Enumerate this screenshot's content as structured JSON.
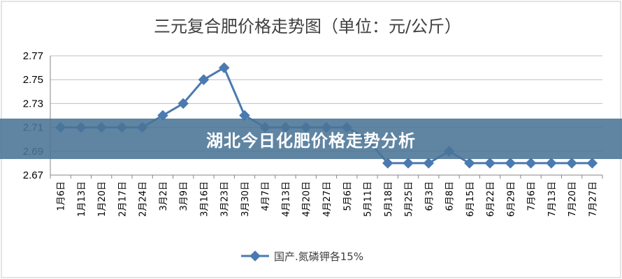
{
  "banner": {
    "text": "湖北今日化肥价格走势分析"
  },
  "chart_data": {
    "type": "line",
    "title": "三元复合肥价格走势图（单位：元/公斤）",
    "categories": [
      "1月6日",
      "1月13日",
      "1月20日",
      "2月17日",
      "2月24日",
      "3月2日",
      "3月9日",
      "3月16日",
      "3月23日",
      "3月30日",
      "4月7日",
      "4月13日",
      "4月20日",
      "4月27日",
      "5月6日",
      "5月11日",
      "5月18日",
      "5月25日",
      "6月3日",
      "6月8日",
      "6月15日",
      "6月22日",
      "6月29日",
      "7月6日",
      "7月13日",
      "7月20日",
      "7月27日"
    ],
    "series": [
      {
        "name": "国产.氮磷钾各15%",
        "color": "#4a7ab0",
        "values": [
          2.71,
          2.71,
          2.71,
          2.71,
          2.71,
          2.72,
          2.73,
          2.75,
          2.76,
          2.72,
          2.71,
          2.71,
          2.71,
          2.71,
          2.71,
          2.7,
          2.68,
          2.68,
          2.68,
          2.69,
          2.68,
          2.68,
          2.68,
          2.68,
          2.68,
          2.68,
          2.68
        ]
      }
    ],
    "yticks": [
      "2.77",
      "2.75",
      "2.73",
      "2.71",
      "2.69",
      "2.67"
    ],
    "ylim": [
      2.67,
      2.77
    ],
    "grid": true,
    "legend": "bottom"
  }
}
